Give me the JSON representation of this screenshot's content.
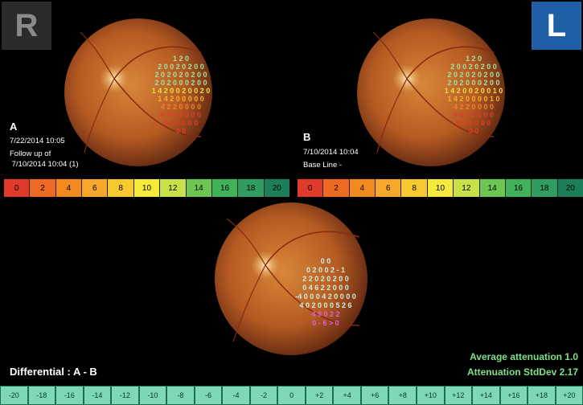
{
  "badges": {
    "right_eye": "R",
    "left_eye": "L"
  },
  "panel_a": {
    "letter": "A",
    "date": "7/22/2014 10:05",
    "line2": "Follow up of",
    "line3": " 7/10/2014 10:04 (1)"
  },
  "panel_b": {
    "letter": "B",
    "date": "7/10/2014 10:04",
    "line2": "Base Line -"
  },
  "scale_values": [
    "0",
    "2",
    "4",
    "6",
    "8",
    "10",
    "12",
    "14",
    "16",
    "18",
    "20"
  ],
  "scale_colors": [
    "#e03a2b",
    "#ee6a22",
    "#f38a1f",
    "#f7a82a",
    "#f7c92e",
    "#f5ea3a",
    "#c8e04a",
    "#6cc651",
    "#3fb25a",
    "#2f9d61",
    "#1d7f5a"
  ],
  "differential": {
    "title": "Differential : A - B",
    "scale_values": [
      "-20",
      "-18",
      "-16",
      "-14",
      "-12",
      "-10",
      "-8",
      "-6",
      "-4",
      "-2",
      "0",
      "+2",
      "+4",
      "+6",
      "+8",
      "+10",
      "+12",
      "+14",
      "+16",
      "+18",
      "+20"
    ]
  },
  "stats": {
    "average": "Average attenuation 1.0",
    "stddev": "Attenuation StdDev 2.17"
  },
  "grid_a": {
    "rows": [
      "1 2 0",
      "2 0 0 2 0 2 0 0",
      "2 0 2 0 2 0 2 0 0",
      "2 0 2 0 0 0 2 0 0",
      "1 4 2 0 0 2 0 0 2 0",
      "1 4 2 0 0 0 0 0",
      "4 2 2 0 0 0 0",
      "0 0 0 0 0 0 0",
      "0 0 0 0 0 0",
      "0 0"
    ]
  },
  "grid_b": {
    "rows": [
      "1 2 0",
      "2 0 0 2 0 2 0 0",
      "2 0 2 0 2 0 2 0 0",
      "2 0 2 0 0 0 2 0 0",
      "1 4 2 0 0 2 0 0 1 0",
      "1 4 2 0 0 0 0 1 0",
      "4 2 2 0 0 0 0",
      "0 0 0 0 0 0 0",
      "0 0 0 0 0 0",
      "0 0"
    ]
  },
  "grid_diff": {
    "rows": [
      "0 0",
      "0 2 0 0 2 - 1",
      "2 2 0 2 0 2 0 0",
      "0 4 6 2 2 0 0 0",
      "-4 0 0 0 4 2 0 0 0 0",
      "4 0 2 0 0 0 5 2 6",
      "4 9 0 2 2",
      "0 - 6 > 0"
    ]
  }
}
